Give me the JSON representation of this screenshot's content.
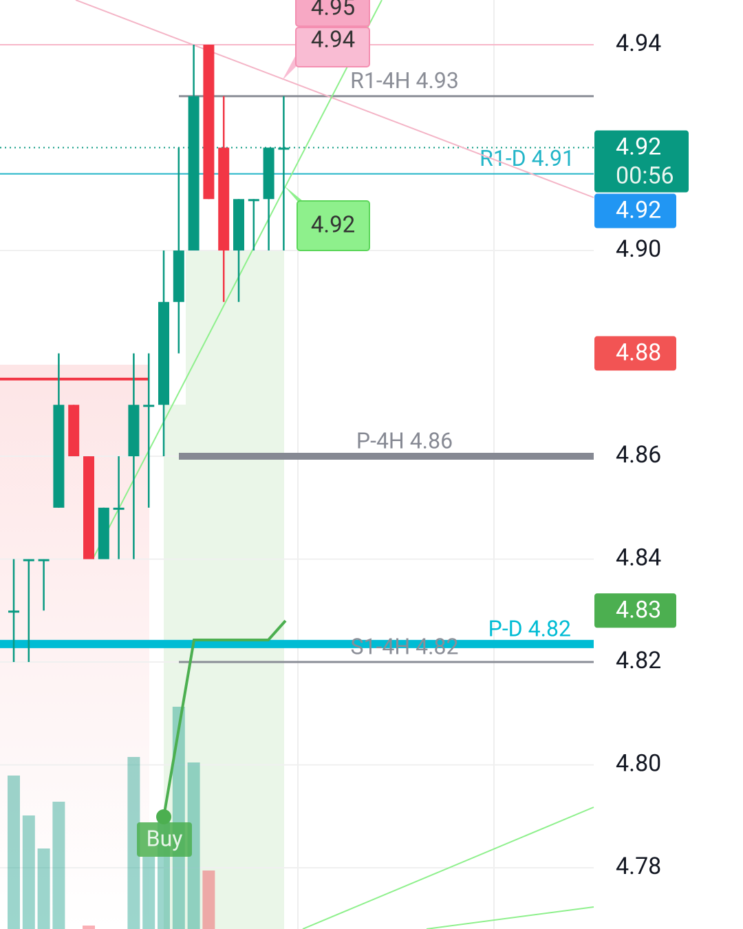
{
  "chart_data": {
    "type": "candlestick",
    "ylim": [
      4.7681,
      4.9487
    ],
    "yticks": [
      4.94,
      {
        "value": 4.9,
        "label": "4.90"
      },
      4.86,
      4.84,
      4.82,
      {
        "value": 4.8,
        "label": "4.80"
      },
      4.78
    ],
    "grid": true,
    "up_color": "#089981",
    "down_color": "#f23645",
    "open": [
      4.83,
      4.84,
      4.84,
      4.85,
      4.87,
      4.86,
      4.84,
      4.85,
      4.86,
      4.87,
      4.87,
      4.89,
      4.9,
      4.94,
      4.92,
      4.9,
      4.91,
      4.91,
      4.92
    ],
    "high": [
      4.84,
      4.84,
      4.84,
      4.88,
      4.87,
      4.86,
      4.85,
      4.86,
      4.88,
      4.88,
      4.9,
      4.92,
      4.94,
      4.94,
      4.93,
      4.91,
      4.91,
      4.92,
      4.93
    ],
    "low": [
      4.82,
      4.82,
      4.83,
      4.85,
      4.86,
      4.84,
      4.84,
      4.84,
      4.84,
      4.85,
      4.86,
      4.88,
      4.9,
      4.91,
      4.89,
      4.89,
      4.9,
      4.9,
      4.9
    ],
    "close": [
      4.83,
      4.84,
      4.84,
      4.87,
      4.86,
      4.84,
      4.85,
      4.85,
      4.87,
      4.87,
      4.89,
      4.9,
      4.93,
      4.91,
      4.9,
      4.91,
      4.91,
      4.92,
      4.92
    ],
    "volume": [
      223,
      165,
      117,
      185,
      0,
      5,
      0,
      0,
      250,
      105,
      160,
      323,
      242,
      85,
      0,
      0,
      0,
      0,
      0
    ],
    "vlim": [
      0,
      400
    ],
    "levels": [
      {
        "value": 4.94,
        "color": "#f7b6c8"
      },
      {
        "label": "R1-4H 4.93",
        "value": 4.93,
        "color": "#8a8d96"
      },
      {
        "label": "R1-D 4.91",
        "value": 4.9149,
        "color": "#22b5c8"
      },
      {
        "label": "P-4H 4.86",
        "value": 4.86,
        "color": "#868993"
      },
      {
        "label": "P-D 4.82",
        "value": 4.8235,
        "color": "#00bcd4"
      },
      {
        "label": "S1-4H 4.82",
        "value": 4.82,
        "color": "#8a8d96"
      },
      {
        "value": 4.875,
        "color": "#f23645"
      }
    ],
    "badges": [
      {
        "value": 4.92,
        "countdown": "00:56",
        "color": "#089981"
      },
      {
        "value": 4.92,
        "color": "#2196f3"
      },
      {
        "value": 4.88,
        "color": "#f25454"
      },
      {
        "value": 4.83,
        "color": "#4caf50"
      }
    ],
    "callouts": [
      {
        "value": 4.95,
        "color": "#f7a8c4"
      },
      {
        "value": 4.94,
        "color": "#f9bcd3"
      },
      {
        "value": 4.92,
        "color": "#8ef08c"
      }
    ],
    "signal": "Buy"
  }
}
